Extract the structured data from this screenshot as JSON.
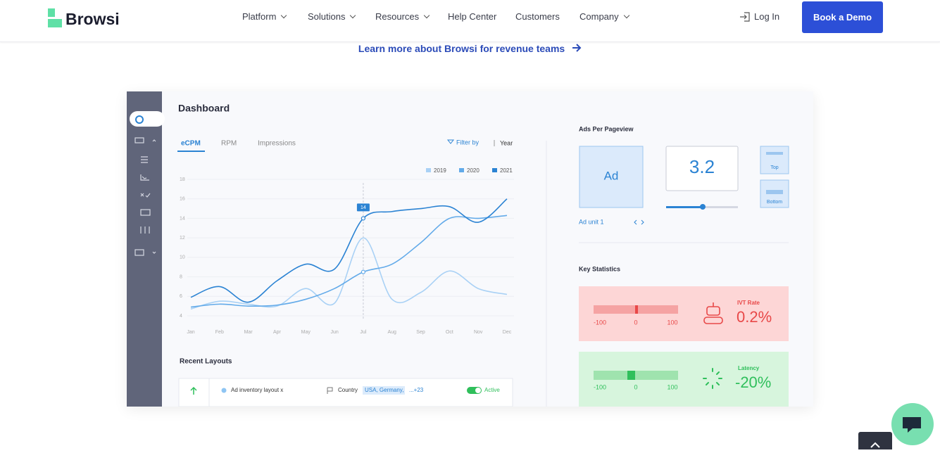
{
  "nav": {
    "logo": "Browsi",
    "items": [
      "Platform",
      "Solutions",
      "Resources",
      "Help Center",
      "Customers",
      "Company"
    ],
    "login": "Log In",
    "cta": "Book a Demo"
  },
  "promo_link": "Learn more about Browsi for revenue teams",
  "dashboard": {
    "title": "Dashboard",
    "tabs": [
      "eCPM",
      "RPM",
      "Impressions"
    ],
    "filter": "Filter by",
    "period": "Year",
    "chart": {
      "type": "line",
      "categories": [
        "Jan",
        "Feb",
        "Mar",
        "Apr",
        "May",
        "Jun",
        "Jul",
        "Aug",
        "Sep",
        "Oct",
        "Nov",
        "Dec"
      ],
      "ylim": [
        4,
        18
      ],
      "yticks": [
        4,
        6,
        8,
        10,
        12,
        14,
        16,
        18
      ],
      "grid": true,
      "series": [
        {
          "name": "2019",
          "color": "#a9d1f5",
          "values": [
            4.7,
            5.5,
            5.2,
            5.0,
            6.8,
            5.3,
            12.0,
            5.7,
            6.4,
            8.6,
            6.8,
            6.2
          ]
        },
        {
          "name": "2020",
          "color": "#62aae9",
          "values": [
            4.9,
            5.2,
            5.0,
            5.1,
            5.7,
            6.8,
            8.5,
            9.3,
            11.5,
            14.0,
            14.0,
            14.3
          ]
        },
        {
          "name": "2021",
          "color": "#2b83d3",
          "values": [
            5.9,
            7.0,
            5.4,
            7.6,
            9.3,
            8.8,
            14.0,
            14.7,
            15.0,
            15.2,
            13.6,
            16.0
          ]
        }
      ],
      "annotation": {
        "text": "14",
        "x": "Jul"
      }
    },
    "recent_layouts": {
      "title": "Recent Layouts",
      "row": {
        "name": "Ad inventory layout x",
        "filter": "Country",
        "tag": "USA, Germany,",
        "more": "...+23",
        "status": "Active"
      }
    },
    "ads_per_pageview": {
      "title": "Ads Per Pageview",
      "ad": "Ad",
      "value": "3.2",
      "positions": [
        "Top",
        "Bottom"
      ],
      "unit": "Ad unit 1"
    },
    "key_statistics": {
      "title": "Key Statistics",
      "cards": [
        {
          "label": "IVT Rate",
          "value": "0.2%",
          "scale": [
            "-100",
            "0",
            "100"
          ]
        },
        {
          "label": "Latency",
          "value": "-20%",
          "scale": [
            "-100",
            "0",
            "100"
          ]
        }
      ]
    }
  }
}
